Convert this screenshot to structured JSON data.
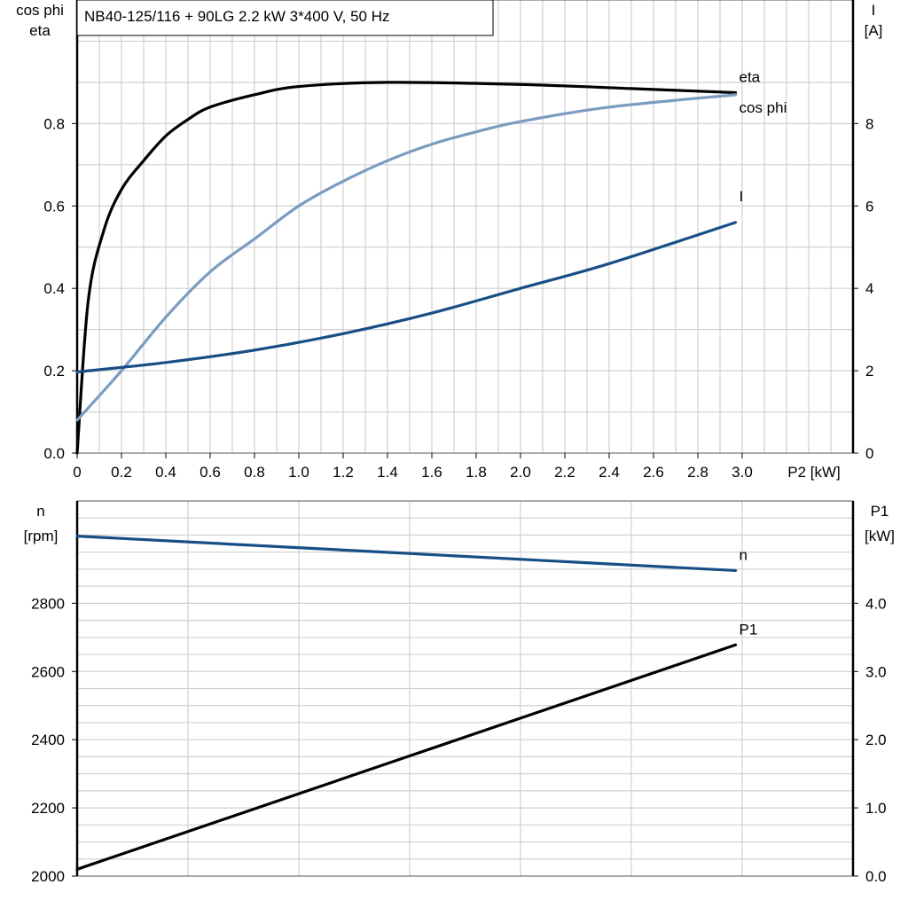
{
  "title": "NB40-125/116 + 90LG   2.2 kW   3*400 V, 50 Hz",
  "chart_data": [
    {
      "type": "line",
      "xlabel": "P2 [kW]",
      "ylabel_left": [
        "cos phi",
        "eta"
      ],
      "ylabel_right": [
        "I",
        "[A]"
      ],
      "xlim": [
        0,
        3.5
      ],
      "ylim_left": [
        0,
        1.1
      ],
      "ylim_right": [
        0,
        11
      ],
      "x_ticks": [
        "0",
        "0.2",
        "0.4",
        "0.6",
        "0.8",
        "1.0",
        "1.2",
        "1.4",
        "1.6",
        "1.8",
        "2.0",
        "2.2",
        "2.4",
        "2.6",
        "2.8",
        "3.0"
      ],
      "y_ticks_left": [
        "0.0",
        "0.2",
        "0.4",
        "0.6",
        "0.8"
      ],
      "y_ticks_right": [
        "0",
        "2",
        "4",
        "6",
        "8"
      ],
      "grid": true,
      "series": [
        {
          "name": "eta",
          "axis": "left",
          "color": "#000000",
          "x": [
            0,
            0.05,
            0.12,
            0.2,
            0.3,
            0.4,
            0.5,
            0.6,
            0.8,
            1.0,
            1.4,
            2.0,
            2.5,
            2.97
          ],
          "y": [
            0,
            0.37,
            0.54,
            0.64,
            0.71,
            0.77,
            0.81,
            0.84,
            0.87,
            0.89,
            0.9,
            0.895,
            0.885,
            0.875
          ]
        },
        {
          "name": "cos phi",
          "axis": "left",
          "color": "#7a9cbf",
          "x": [
            0,
            0.2,
            0.4,
            0.6,
            0.8,
            1.0,
            1.2,
            1.4,
            1.6,
            1.8,
            2.0,
            2.4,
            2.97
          ],
          "y": [
            0.08,
            0.2,
            0.33,
            0.44,
            0.52,
            0.6,
            0.66,
            0.71,
            0.75,
            0.78,
            0.805,
            0.84,
            0.87
          ]
        },
        {
          "name": "I",
          "axis": "right",
          "color": "#174f85",
          "x": [
            0,
            0.4,
            0.8,
            1.2,
            1.6,
            2.0,
            2.4,
            2.97
          ],
          "y": [
            1.97,
            2.2,
            2.5,
            2.9,
            3.4,
            4.0,
            4.6,
            5.6
          ]
        }
      ]
    },
    {
      "type": "line",
      "ylabel_left": [
        "n",
        "[rpm]"
      ],
      "ylabel_right": [
        "P1",
        "[kW]"
      ],
      "xlim": [
        0,
        3.5
      ],
      "ylim_left": [
        2000,
        3100
      ],
      "ylim_right": [
        0,
        5.5
      ],
      "y_ticks_left": [
        "2000",
        "2200",
        "2400",
        "2600",
        "2800"
      ],
      "y_ticks_right": [
        "0.0",
        "1.0",
        "2.0",
        "3.0",
        "4.0"
      ],
      "grid": true,
      "series": [
        {
          "name": "n",
          "axis": "left",
          "color": "#174f85",
          "x": [
            0,
            2.97
          ],
          "y": [
            2997,
            2896
          ]
        },
        {
          "name": "P1",
          "axis": "right",
          "color": "#000000",
          "x": [
            0,
            2.97
          ],
          "y": [
            0.1,
            3.39
          ]
        }
      ]
    }
  ]
}
